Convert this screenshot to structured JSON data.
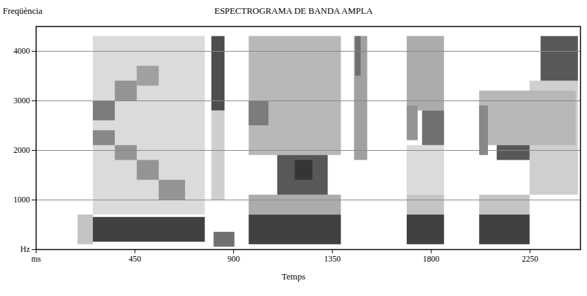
{
  "chart_data": {
    "type": "heatmap",
    "title": "ESPECTROGRAMA DE BANDA AMPLA",
    "x_label": "Temps",
    "y_label": "Freqüència",
    "xlim": [
      0,
      2480
    ],
    "ylim": [
      0,
      4500
    ],
    "xticks": [
      {
        "value": 0,
        "label": "ms"
      },
      450,
      900,
      1350,
      1800,
      2250
    ],
    "yticks": [
      {
        "value": 0,
        "label": "Hz"
      },
      1000,
      2000,
      3000,
      4000
    ],
    "grid": true,
    "intensity_range": [
      0,
      1
    ],
    "cells": [
      {
        "t0": 190,
        "t1": 260,
        "f0": 100,
        "f1": 700,
        "level": 0.25
      },
      {
        "t0": 260,
        "t1": 770,
        "f0": 700,
        "f1": 4300,
        "level": 0.15
      },
      {
        "t0": 260,
        "t1": 770,
        "f0": 150,
        "f1": 650,
        "level": 0.8
      },
      {
        "t0": 260,
        "t1": 360,
        "f0": 2100,
        "f1": 2400,
        "level": 0.5
      },
      {
        "t0": 360,
        "t1": 460,
        "f0": 1800,
        "f1": 2100,
        "level": 0.45
      },
      {
        "t0": 460,
        "t1": 560,
        "f0": 1400,
        "f1": 1800,
        "level": 0.45
      },
      {
        "t0": 560,
        "t1": 680,
        "f0": 1000,
        "f1": 1400,
        "level": 0.45
      },
      {
        "t0": 260,
        "t1": 360,
        "f0": 2600,
        "f1": 3000,
        "level": 0.55
      },
      {
        "t0": 360,
        "t1": 460,
        "f0": 3000,
        "f1": 3400,
        "level": 0.45
      },
      {
        "t0": 460,
        "t1": 560,
        "f0": 3300,
        "f1": 3700,
        "level": 0.4
      },
      {
        "t0": 800,
        "t1": 860,
        "f0": 1000,
        "f1": 2800,
        "level": 0.2
      },
      {
        "t0": 800,
        "t1": 860,
        "f0": 2800,
        "f1": 4300,
        "level": 0.75
      },
      {
        "t0": 810,
        "t1": 905,
        "f0": 50,
        "f1": 350,
        "level": 0.6
      },
      {
        "t0": 970,
        "t1": 1390,
        "f0": 1900,
        "f1": 4300,
        "level": 0.3
      },
      {
        "t0": 970,
        "t1": 1390,
        "f0": 700,
        "f1": 1100,
        "level": 0.35
      },
      {
        "t0": 970,
        "t1": 1390,
        "f0": 100,
        "f1": 700,
        "level": 0.8
      },
      {
        "t0": 1100,
        "t1": 1330,
        "f0": 1100,
        "f1": 1900,
        "level": 0.7
      },
      {
        "t0": 1180,
        "t1": 1260,
        "f0": 1400,
        "f1": 1800,
        "level": 0.85
      },
      {
        "t0": 970,
        "t1": 1060,
        "f0": 2500,
        "f1": 3000,
        "level": 0.55
      },
      {
        "t0": 1450,
        "t1": 1510,
        "f0": 1800,
        "f1": 4300,
        "level": 0.4
      },
      {
        "t0": 1455,
        "t1": 1480,
        "f0": 3500,
        "f1": 4300,
        "level": 0.6
      },
      {
        "t0": 1690,
        "t1": 1860,
        "f0": 1100,
        "f1": 2100,
        "level": 0.15
      },
      {
        "t0": 1690,
        "t1": 1860,
        "f0": 2800,
        "f1": 4300,
        "level": 0.35
      },
      {
        "t0": 1690,
        "t1": 1860,
        "f0": 700,
        "f1": 1100,
        "level": 0.25
      },
      {
        "t0": 1690,
        "t1": 1860,
        "f0": 100,
        "f1": 700,
        "level": 0.8
      },
      {
        "t0": 1690,
        "t1": 1740,
        "f0": 2200,
        "f1": 2900,
        "level": 0.45
      },
      {
        "t0": 1760,
        "t1": 1860,
        "f0": 2100,
        "f1": 2800,
        "level": 0.6
      },
      {
        "t0": 2250,
        "t1": 2470,
        "f0": 1100,
        "f1": 3400,
        "level": 0.2
      },
      {
        "t0": 2020,
        "t1": 2460,
        "f0": 2100,
        "f1": 3200,
        "level": 0.3
      },
      {
        "t0": 2020,
        "t1": 2250,
        "f0": 700,
        "f1": 1100,
        "level": 0.25
      },
      {
        "t0": 2020,
        "t1": 2250,
        "f0": 100,
        "f1": 700,
        "level": 0.8
      },
      {
        "t0": 2020,
        "t1": 2060,
        "f0": 1900,
        "f1": 2900,
        "level": 0.5
      },
      {
        "t0": 2100,
        "t1": 2250,
        "f0": 1800,
        "f1": 2100,
        "level": 0.7
      },
      {
        "t0": 2300,
        "t1": 2470,
        "f0": 3400,
        "f1": 4300,
        "level": 0.7
      }
    ]
  }
}
